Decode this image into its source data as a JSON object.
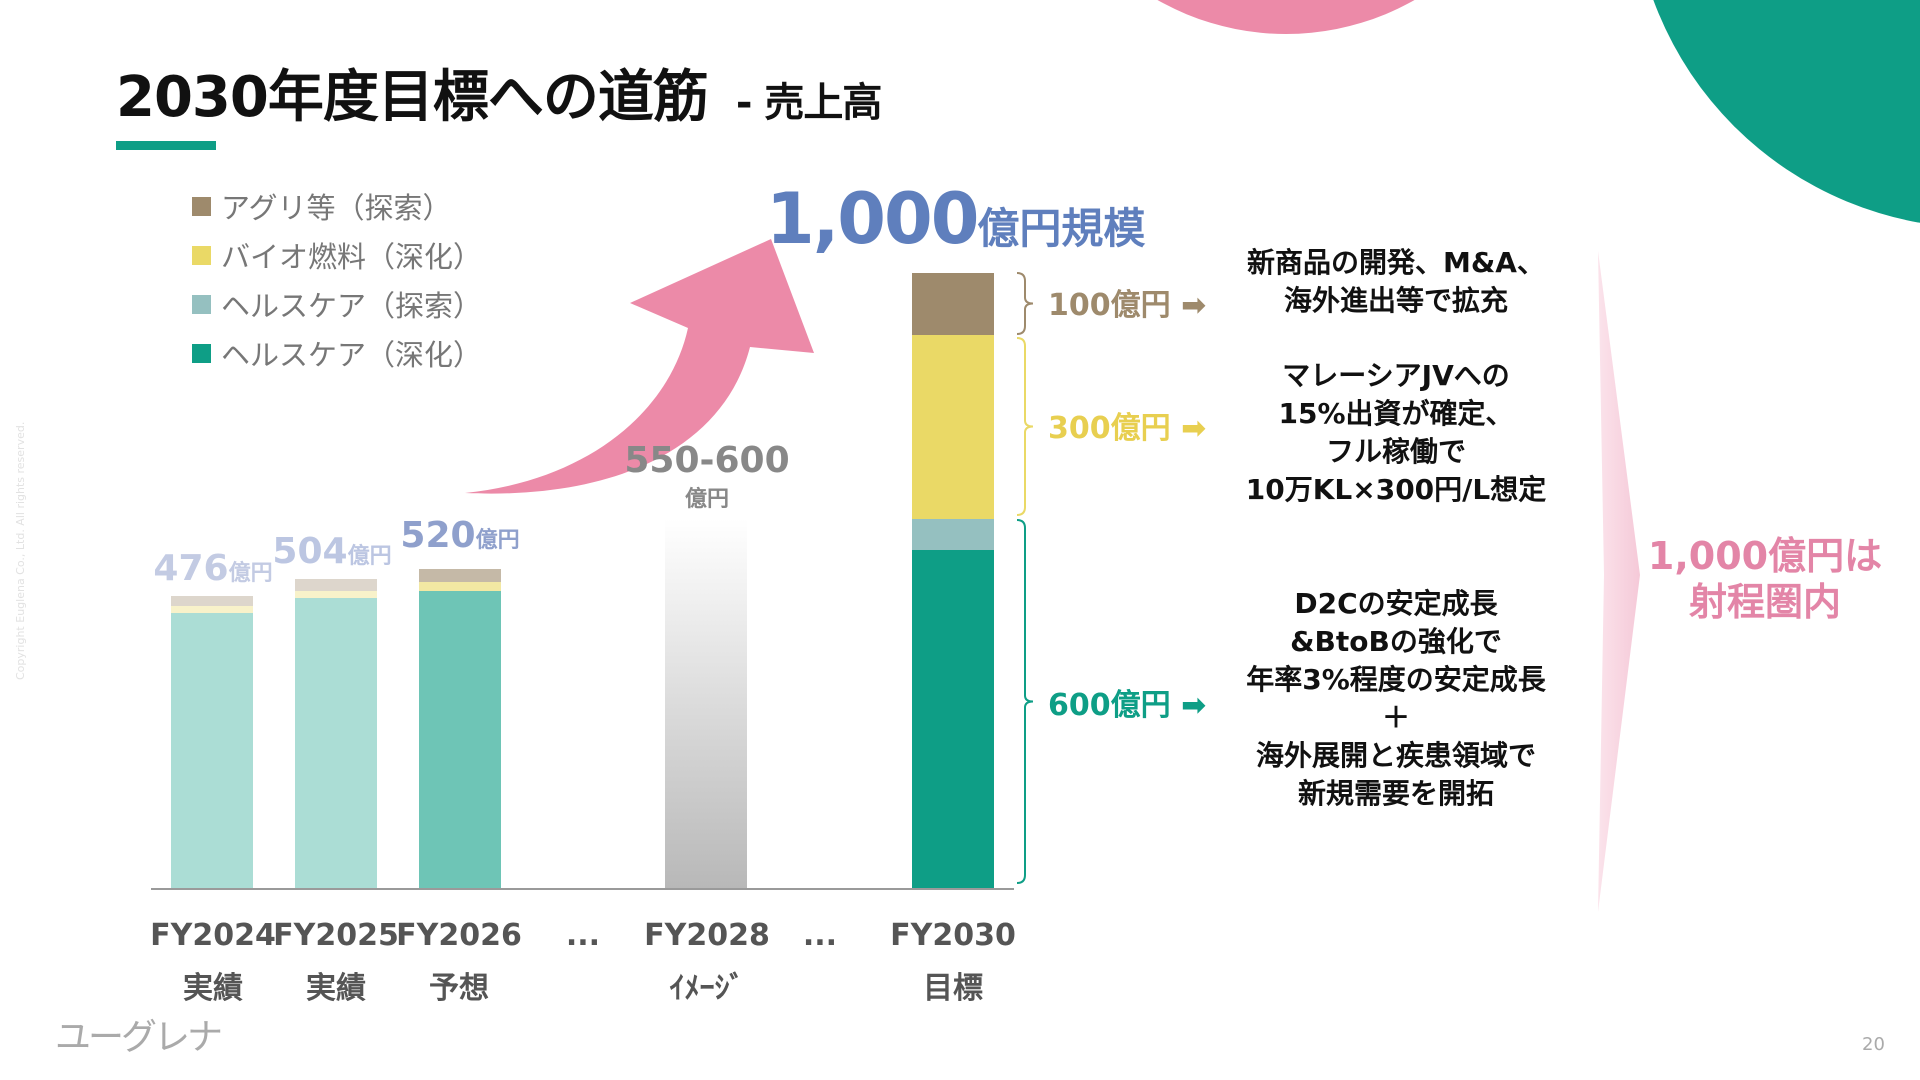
{
  "header": {
    "title": "2030年度目標への道筋",
    "subtitle": "- 売上高"
  },
  "legend": [
    {
      "label": "アグリ等（探索）",
      "color": "#9e8a6c"
    },
    {
      "label": "バイオ燃料（深化）",
      "color": "#ead966"
    },
    {
      "label": "ヘルスケア（探索）",
      "color": "#95c0c0"
    },
    {
      "label": "ヘルスケア（深化）",
      "color": "#0e9e86"
    }
  ],
  "chart_data": {
    "type": "bar",
    "stacked": true,
    "categories": [
      "FY2024",
      "FY2025",
      "FY2026",
      "FY2028",
      "FY2030"
    ],
    "category_sublabels": [
      "実績",
      "実績",
      "予想",
      "ｲﾒｰｼﾞ",
      "目標"
    ],
    "ellipsis_label": "...",
    "series": [
      {
        "name": "ヘルスケア（深化）",
        "color": "#0e9e86",
        "values": [
          448,
          472,
          484,
          null,
          550
        ]
      },
      {
        "name": "ヘルスケア（探索）",
        "color": "#95c0c0",
        "values": [
          0,
          0,
          0,
          null,
          50
        ]
      },
      {
        "name": "バイオ燃料（深化）",
        "color": "#ead966",
        "values": [
          12,
          12,
          14,
          null,
          300
        ]
      },
      {
        "name": "アグリ等（探索）",
        "color": "#9e8a6c",
        "values": [
          16,
          20,
          22,
          null,
          100
        ]
      }
    ],
    "fy2028_range": [
      550,
      600
    ],
    "totals": [
      {
        "num": "476",
        "unit": "億円"
      },
      {
        "num": "504",
        "unit": "億円"
      },
      {
        "num": "520",
        "unit": "億円"
      },
      {
        "num": "550-600",
        "unit": "億円"
      },
      {
        "num": "1,000",
        "unit": "億円規模"
      }
    ],
    "ylim": [
      0,
      1000
    ]
  },
  "breakdown": [
    {
      "label": "100億円",
      "color": "#9e8a6c",
      "lines": [
        "新商品の開発、M&A、",
        "海外進出等で拡充"
      ]
    },
    {
      "label": "300億円",
      "color": "#e8cf50",
      "lines": [
        "マレーシアJVへの",
        "15%出資が確定、",
        "フル稼働で",
        "10万KL×300円/L想定"
      ]
    },
    {
      "label": "600億円",
      "color": "#0e9e86",
      "lines": [
        "D2Cの安定成長",
        "&BtoBの強化で",
        "年率3%程度の安定成長",
        "＋",
        "海外展開と疾患領域で",
        "新規需要を開拓"
      ]
    }
  ],
  "goal": {
    "lines": [
      "1,000億円は",
      "射程圏内"
    ],
    "color": "#e385a7"
  },
  "footer": {
    "copyright": "Copyright Euglena Co., Ltd. All rights reserved.",
    "logo": "ユーグレナ",
    "page_number": "20"
  },
  "colors": {
    "accent": "#0e9e86",
    "pink": "#ec8aa8",
    "blue": "#5f7fbd"
  }
}
